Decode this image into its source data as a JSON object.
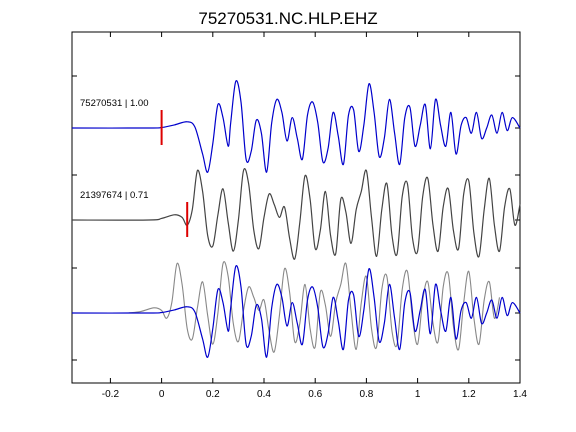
{
  "chart_data": {
    "type": "line",
    "title": "75270531.NC.HLP.EHZ",
    "xlabel": "",
    "ylabel": "",
    "xlim": [
      -0.35,
      1.4
    ],
    "x_ticks": [
      -0.2,
      0,
      0.2,
      0.4,
      0.6,
      0.8,
      1,
      1.2,
      1.4
    ],
    "x_tick_labels": [
      "-0.2",
      "0",
      "0.2",
      "0.4",
      "0.6",
      "0.8",
      "1",
      "1.2",
      "1.4"
    ],
    "grid": false,
    "colors": {
      "primary": "#0000cc",
      "secondary": "#444444",
      "overlay": "#888888",
      "pick": "#dd0000"
    },
    "series": [
      {
        "label": "75270531 | 1.00",
        "color": "#0000cc",
        "pick_time": 0.0,
        "baseline_time": 0.05,
        "x": [
          -0.35,
          -0.05,
          0.0,
          0.05,
          0.1,
          0.13,
          0.16,
          0.18,
          0.2,
          0.22,
          0.24,
          0.26,
          0.27,
          0.29,
          0.31,
          0.33,
          0.35,
          0.37,
          0.39,
          0.41,
          0.43,
          0.45,
          0.47,
          0.49,
          0.51,
          0.53,
          0.55,
          0.57,
          0.59,
          0.61,
          0.63,
          0.65,
          0.67,
          0.69,
          0.71,
          0.73,
          0.75,
          0.77,
          0.79,
          0.81,
          0.83,
          0.85,
          0.87,
          0.89,
          0.91,
          0.93,
          0.95,
          0.97,
          0.99,
          1.01,
          1.03,
          1.05,
          1.07,
          1.09,
          1.11,
          1.13,
          1.15,
          1.17,
          1.19,
          1.21,
          1.23,
          1.25,
          1.27,
          1.29,
          1.31,
          1.33,
          1.35,
          1.37,
          1.4
        ],
        "y": [
          0,
          0,
          0.01,
          0.06,
          0.12,
          0.02,
          -0.5,
          -0.85,
          -0.3,
          0.45,
          0.2,
          -0.35,
          0.1,
          0.9,
          0.5,
          -0.6,
          -0.45,
          0.15,
          -0.1,
          -0.85,
          0.1,
          0.55,
          0.3,
          -0.25,
          0.2,
          -0.2,
          -0.6,
          0.25,
          0.5,
          0.1,
          -0.65,
          -0.4,
          0.3,
          -0.15,
          -0.7,
          0.25,
          0.35,
          -0.45,
          0.05,
          0.85,
          0.3,
          -0.55,
          -0.2,
          0.55,
          -0.1,
          -0.7,
          0.2,
          0.4,
          -0.35,
          0.05,
          0.45,
          -0.4,
          0.55,
          0.05,
          -0.35,
          0.3,
          -0.5,
          0.05,
          0.2,
          -0.1,
          0.3,
          -0.2,
          0.0,
          0.25,
          -0.1,
          0.3,
          -0.05,
          0.2,
          0.0
        ]
      },
      {
        "label": "21397674 | 0.71",
        "color": "#444444",
        "pick_time": 0.1,
        "baseline_time": 0.05,
        "x": [
          -0.35,
          -0.05,
          0.0,
          0.05,
          0.08,
          0.1,
          0.12,
          0.14,
          0.16,
          0.18,
          0.2,
          0.22,
          0.24,
          0.26,
          0.28,
          0.3,
          0.32,
          0.34,
          0.36,
          0.38,
          0.4,
          0.42,
          0.44,
          0.46,
          0.48,
          0.5,
          0.52,
          0.54,
          0.56,
          0.58,
          0.6,
          0.62,
          0.64,
          0.66,
          0.68,
          0.7,
          0.72,
          0.74,
          0.76,
          0.78,
          0.8,
          0.82,
          0.84,
          0.86,
          0.88,
          0.9,
          0.92,
          0.94,
          0.96,
          0.98,
          1.0,
          1.02,
          1.04,
          1.06,
          1.08,
          1.1,
          1.12,
          1.14,
          1.16,
          1.18,
          1.2,
          1.22,
          1.24,
          1.26,
          1.28,
          1.3,
          1.32,
          1.34,
          1.36,
          1.38,
          1.4
        ],
        "y": [
          0,
          0,
          0.03,
          0.1,
          0.05,
          -0.1,
          0.2,
          0.95,
          0.55,
          -0.3,
          -0.5,
          0.1,
          0.6,
          -0.05,
          -0.6,
          0.0,
          0.95,
          0.7,
          -0.2,
          -0.55,
          0.05,
          0.5,
          0.3,
          0.05,
          0.25,
          -0.35,
          -0.75,
          -0.05,
          0.85,
          0.4,
          -0.55,
          -0.2,
          0.55,
          -0.3,
          -0.65,
          0.4,
          0.15,
          -0.45,
          0.2,
          0.55,
          0.95,
          0.05,
          -0.7,
          0.2,
          0.7,
          -0.3,
          -0.65,
          0.45,
          0.7,
          -0.35,
          -0.6,
          0.45,
          0.8,
          -0.1,
          -0.6,
          0.25,
          0.6,
          -0.2,
          -0.55,
          0.5,
          0.75,
          -0.25,
          -0.7,
          0.2,
          0.8,
          -0.1,
          -0.6,
          0.25,
          0.6,
          -0.1,
          0.3
        ]
      }
    ],
    "overlay": {
      "shift": -0.08
    }
  }
}
